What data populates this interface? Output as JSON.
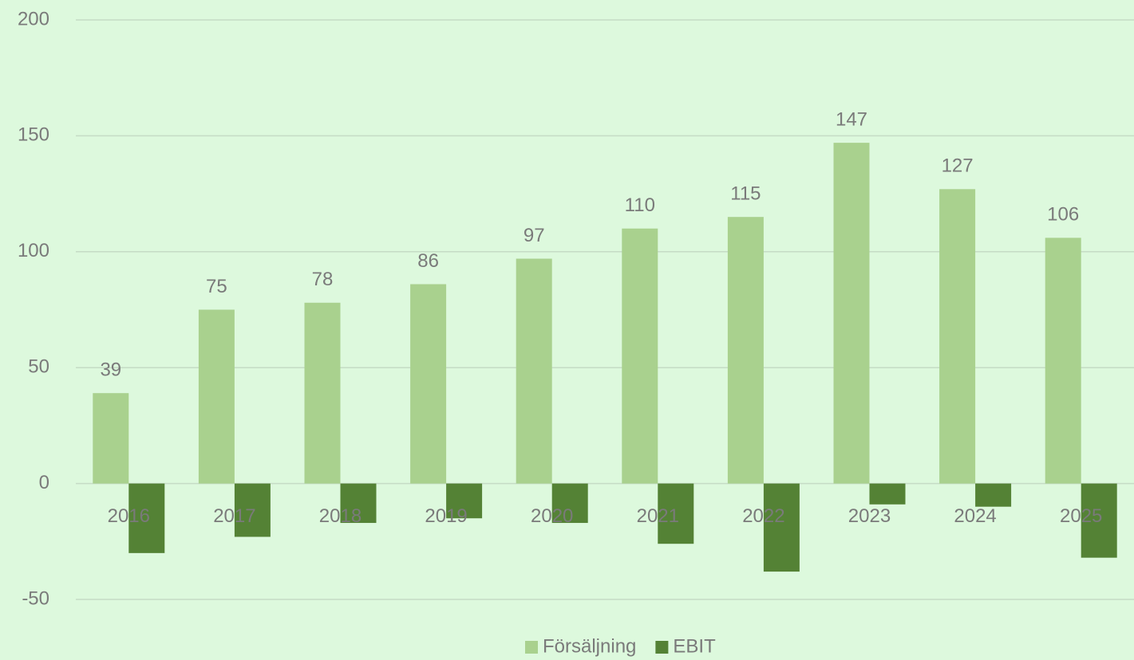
{
  "chart_data": {
    "type": "bar",
    "categories": [
      "2016",
      "2017",
      "2018",
      "2019",
      "2020",
      "2021",
      "2022",
      "2023",
      "2024",
      "2025"
    ],
    "series": [
      {
        "name": "Försäljning",
        "color": "#a9d18e",
        "values": [
          39,
          75,
          78,
          86,
          97,
          110,
          115,
          147,
          127,
          106
        ]
      },
      {
        "name": "EBIT",
        "color": "#548235",
        "values": [
          -30,
          -23,
          -17,
          -15,
          -17,
          -26,
          -38,
          -9,
          -10,
          -32
        ]
      }
    ],
    "data_labels_series": [
      0
    ],
    "ylim": [
      -50,
      200
    ],
    "yticks": [
      -50,
      0,
      50,
      100,
      150,
      200
    ],
    "grid": true,
    "legend": "bottom"
  }
}
